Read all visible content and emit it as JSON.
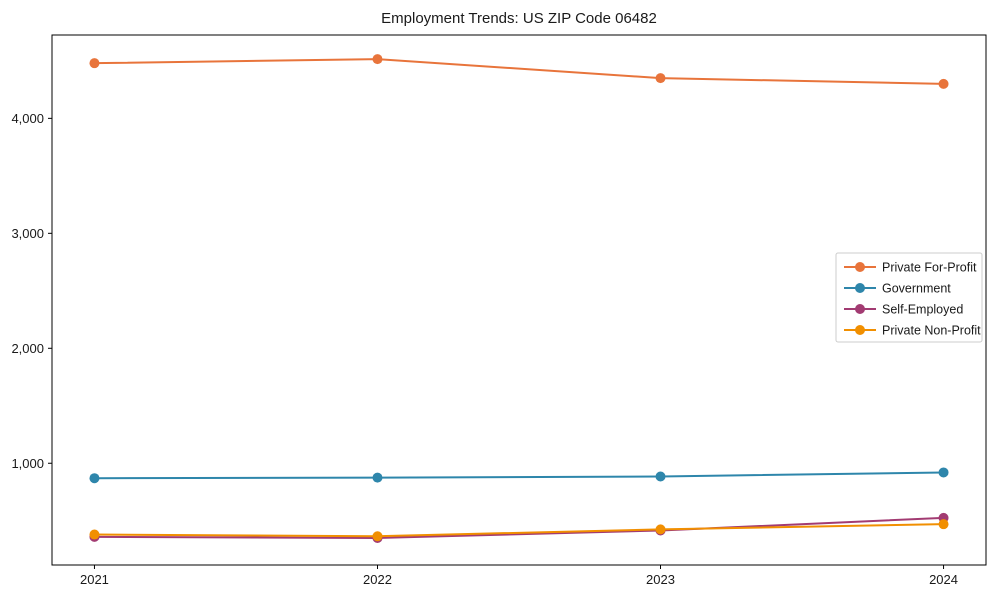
{
  "chart_data": {
    "type": "line",
    "title": "Employment Trends: US ZIP Code 06482",
    "x": [
      2021,
      2022,
      2023,
      2024
    ],
    "x_tick_labels": [
      "2021",
      "2022",
      "2023",
      "2024"
    ],
    "series": [
      {
        "name": "Private For-Profit",
        "color": "#E8743B",
        "values": [
          4480,
          4515,
          4350,
          4300
        ]
      },
      {
        "name": "Government",
        "color": "#2E86AB",
        "values": [
          870,
          875,
          885,
          920
        ]
      },
      {
        "name": "Self-Employed",
        "color": "#A23B72",
        "values": [
          360,
          350,
          415,
          525
        ]
      },
      {
        "name": "Private Non-Profit",
        "color": "#F18F01",
        "values": [
          380,
          365,
          425,
          470
        ]
      }
    ],
    "xlim": [
      2020.85,
      2024.15
    ],
    "ylim": [
      115,
      4725
    ],
    "y_ticks": [
      1000,
      2000,
      3000,
      4000
    ],
    "y_tick_labels": [
      "1,000",
      "2,000",
      "3,000",
      "4,000"
    ],
    "xlabel": "",
    "ylabel": "",
    "grid": false,
    "legend_position": "center-right",
    "marker": "circle",
    "axis_color": "#000000",
    "text_color": "#1a1a1a",
    "legend_border_color": "#cccccc",
    "background": "#ffffff"
  }
}
